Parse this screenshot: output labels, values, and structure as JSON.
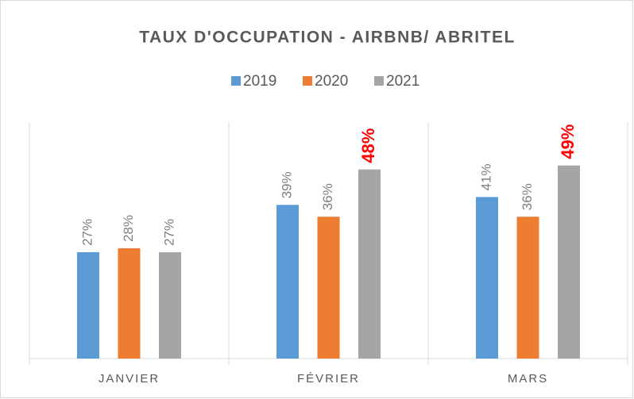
{
  "chart_data": {
    "type": "bar",
    "title": "TAUX D'OCCUPATION - AIRBNB/ ABRITEL",
    "categories": [
      "JANVIER",
      "FÉVRIER",
      "MARS"
    ],
    "series": [
      {
        "name": "2019",
        "color": "#5b9bd5",
        "values": [
          27,
          39,
          41
        ],
        "value_labels": [
          "27%",
          "39%",
          "41%"
        ],
        "value_label_colors": [
          "#7f7f7f",
          "#7f7f7f",
          "#7f7f7f"
        ]
      },
      {
        "name": "2020",
        "color": "#ed7d31",
        "values": [
          28,
          36,
          36
        ],
        "value_labels": [
          "28%",
          "36%",
          "36%"
        ],
        "value_label_colors": [
          "#7f7f7f",
          "#7f7f7f",
          "#7f7f7f"
        ]
      },
      {
        "name": "2021",
        "color": "#a5a5a5",
        "values": [
          27,
          48,
          49
        ],
        "value_labels": [
          "27%",
          "48%",
          "49%"
        ],
        "value_label_colors": [
          "#7f7f7f",
          "#ff0000",
          "#ff0000"
        ]
      }
    ],
    "ylim": [
      0,
      60
    ],
    "legend": "top"
  }
}
